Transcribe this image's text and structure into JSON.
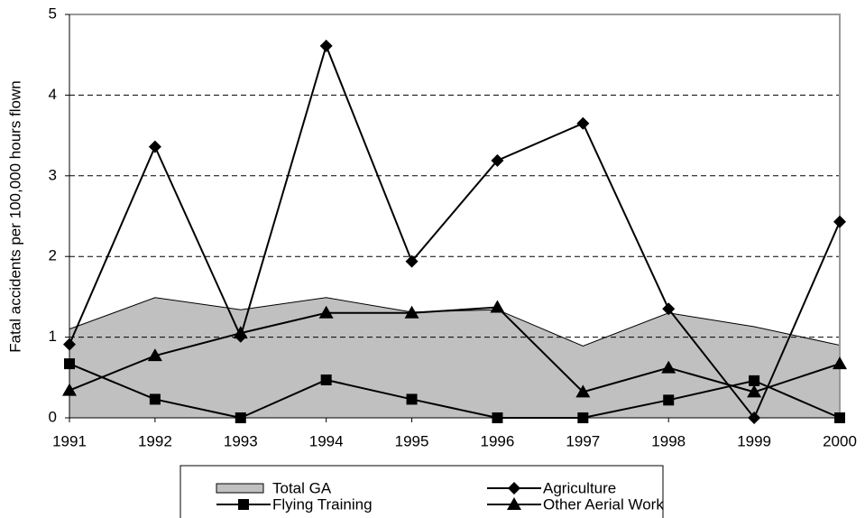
{
  "chart_data": {
    "type": "line",
    "y_label": "Fatal accidents per 100,000 hours flown",
    "categories": [
      "1991",
      "1992",
      "1993",
      "1994",
      "1995",
      "1996",
      "1997",
      "1998",
      "1999",
      "2000"
    ],
    "series": [
      {
        "name": "Total GA",
        "type": "area",
        "color": "#c0c0c0",
        "values": [
          1.1,
          1.49,
          1.34,
          1.49,
          1.31,
          1.34,
          0.89,
          1.3,
          1.13,
          0.9
        ]
      },
      {
        "name": "Agriculture",
        "type": "line",
        "marker": "diamond",
        "color": "#000000",
        "values": [
          0.91,
          3.36,
          1.01,
          4.61,
          1.94,
          3.19,
          3.65,
          1.35,
          0,
          2.43
        ]
      },
      {
        "name": "Flying Training",
        "type": "line",
        "marker": "square",
        "color": "#000000",
        "values": [
          0.67,
          0.23,
          0,
          0.47,
          0.23,
          0,
          0,
          0.22,
          0.46,
          0
        ]
      },
      {
        "name": "Other Aerial Work",
        "type": "line",
        "marker": "triangle",
        "color": "#000000",
        "values": [
          0.34,
          0.77,
          1.05,
          1.3,
          1.3,
          1.37,
          0.32,
          0.62,
          0.32,
          0.67
        ]
      }
    ],
    "ylim": [
      0,
      5
    ],
    "yticks": [
      0,
      1,
      2,
      3,
      4,
      5
    ],
    "grid": true
  }
}
